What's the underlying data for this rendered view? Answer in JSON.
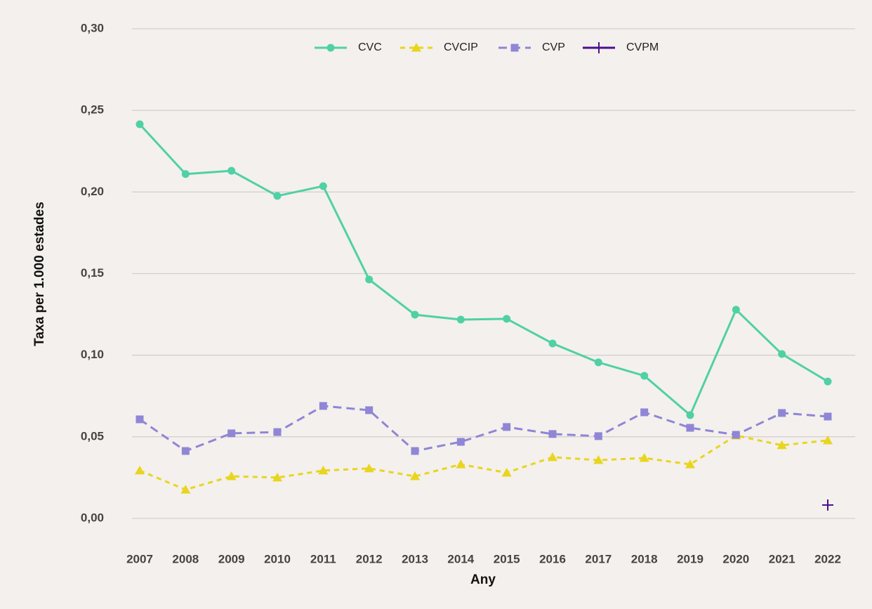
{
  "chart_data": {
    "type": "line",
    "x_label": "Any",
    "y_label": "Taxa per 1.000 estades",
    "categories": [
      "2007",
      "2008",
      "2009",
      "2010",
      "2011",
      "2012",
      "2013",
      "2014",
      "2015",
      "2016",
      "2017",
      "2018",
      "2019",
      "2020",
      "2021",
      "2022"
    ],
    "series": [
      {
        "name": "CVC",
        "color": "#4fd1a5",
        "marker": "circle",
        "dash": "solid",
        "values": [
          0.2415,
          0.211,
          0.213,
          0.1976,
          0.2036,
          0.1464,
          0.1248,
          0.1218,
          0.1223,
          0.1072,
          0.0956,
          0.0874,
          0.0633,
          0.1279,
          0.1007,
          0.0839
        ]
      },
      {
        "name": "CVCIP",
        "color": "#e8d51e",
        "marker": "triangle",
        "dash": "dashed",
        "values": [
          0.0293,
          0.0176,
          0.0258,
          0.025,
          0.0293,
          0.0306,
          0.0258,
          0.0331,
          0.028,
          0.0375,
          0.0357,
          0.037,
          0.0331,
          0.0508,
          0.0448,
          0.0478
        ]
      },
      {
        "name": "CVP",
        "color": "#8f86d6",
        "marker": "square",
        "dash": "longdash",
        "values": [
          0.0607,
          0.0413,
          0.0521,
          0.0529,
          0.0689,
          0.0663,
          0.0413,
          0.0469,
          0.056,
          0.0517,
          0.0504,
          0.065,
          0.0555,
          0.0512,
          0.0646,
          0.0624
        ]
      },
      {
        "name": "CVPM",
        "color": "#4b0f8f",
        "marker": "plus",
        "dash": "solid",
        "values": [
          null,
          null,
          null,
          null,
          null,
          null,
          null,
          null,
          null,
          null,
          null,
          null,
          null,
          null,
          null,
          0.0082
        ]
      }
    ],
    "ylim": [
      0,
      0.3
    ],
    "yticks": [
      {
        "value": 0,
        "label": "0,00"
      },
      {
        "value": 0.05,
        "label": "0,05"
      },
      {
        "value": 0.1,
        "label": "0,10"
      },
      {
        "value": 0.15,
        "label": "0,15"
      },
      {
        "value": 0.2,
        "label": "0,20"
      },
      {
        "value": 0.25,
        "label": "0,25"
      },
      {
        "value": 0.3,
        "label": "0,30"
      }
    ],
    "grid": true,
    "legend": "top"
  }
}
